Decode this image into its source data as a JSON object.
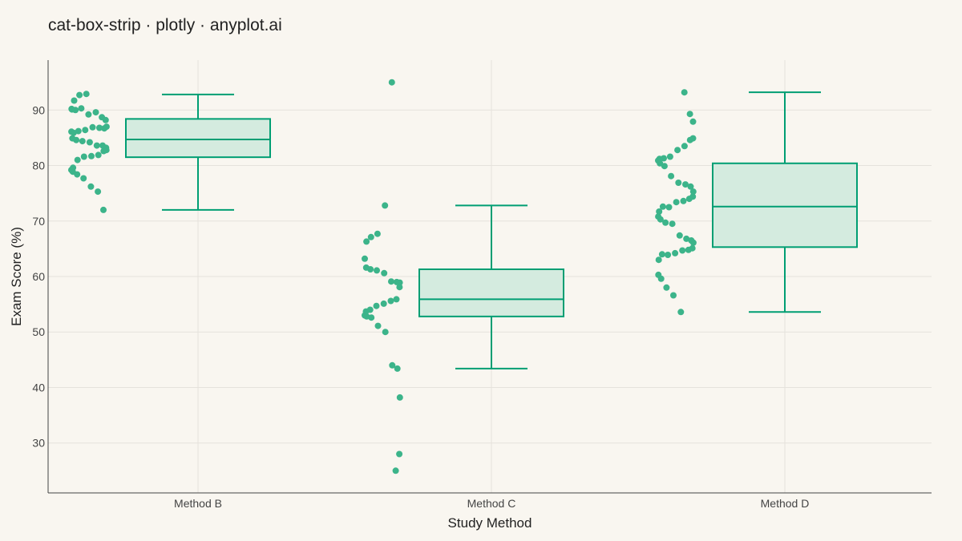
{
  "chart_data": {
    "type": "box",
    "title": "cat-box-strip · plotly · anyplot.ai",
    "xlabel": "Study Method",
    "ylabel": "Exam Score (%)",
    "categories": [
      "Method B",
      "Method C",
      "Method D"
    ],
    "ylim": [
      21,
      99
    ],
    "yticks": [
      30,
      40,
      50,
      60,
      70,
      80,
      90
    ],
    "grid": true,
    "colors": {
      "background": "#f9f6f0",
      "accent": "#009e73",
      "box_fill": "#d4ebdf",
      "point": "#3cb48a",
      "grid": "#e5e2dc",
      "axis": "#444444",
      "text": "#222222"
    },
    "boxes": [
      {
        "category": "Method B",
        "q1": 81.5,
        "median": 84.7,
        "q3": 88.4,
        "whisker_low": 72.0,
        "whisker_high": 92.8
      },
      {
        "category": "Method C",
        "q1": 52.8,
        "median": 55.9,
        "q3": 61.3,
        "whisker_low": 43.4,
        "whisker_high": 72.8
      },
      {
        "category": "Method D",
        "q1": 65.3,
        "median": 72.6,
        "q3": 80.4,
        "whisker_low": 53.6,
        "whisker_high": 93.2
      }
    ],
    "points": [
      {
        "category": "Method B",
        "values": [
          92.9,
          92.7,
          91.7,
          90.2,
          90.1,
          90.0,
          90.3,
          89.2,
          89.6,
          88.7,
          88.2,
          87.0,
          86.7,
          86.8,
          86.9,
          86.4,
          86.2,
          85.9,
          86.1,
          84.9,
          84.6,
          84.4,
          84.2,
          83.6,
          83.6,
          83.2,
          82.8,
          82.6,
          81.9,
          81.7,
          81.6,
          81.0,
          79.6,
          79.2,
          78.9,
          78.4,
          77.7,
          76.2,
          75.3,
          72.0
        ]
      },
      {
        "category": "Method C",
        "values": [
          95.0,
          72.8,
          67.7,
          67.1,
          66.3,
          63.2,
          61.6,
          61.3,
          61.1,
          60.6,
          59.1,
          59.0,
          58.9,
          58.1,
          55.9,
          55.6,
          55.1,
          54.7,
          54.0,
          53.7,
          53.0,
          52.8,
          52.6,
          51.1,
          50.0,
          44.0,
          43.4,
          38.2,
          28.0,
          25.0
        ]
      },
      {
        "category": "Method D",
        "values": [
          93.2,
          89.3,
          87.9,
          84.9,
          84.6,
          83.5,
          82.8,
          81.6,
          81.3,
          81.2,
          80.9,
          80.4,
          79.9,
          78.1,
          76.9,
          76.6,
          76.2,
          75.3,
          74.4,
          74.0,
          73.6,
          73.4,
          72.5,
          72.6,
          71.7,
          70.8,
          70.3,
          69.7,
          69.5,
          67.4,
          66.8,
          66.5,
          66.1,
          65.1,
          64.8,
          64.7,
          64.2,
          63.9,
          64.0,
          63.0,
          60.3,
          59.6,
          58.0,
          56.6,
          53.6
        ]
      }
    ]
  }
}
